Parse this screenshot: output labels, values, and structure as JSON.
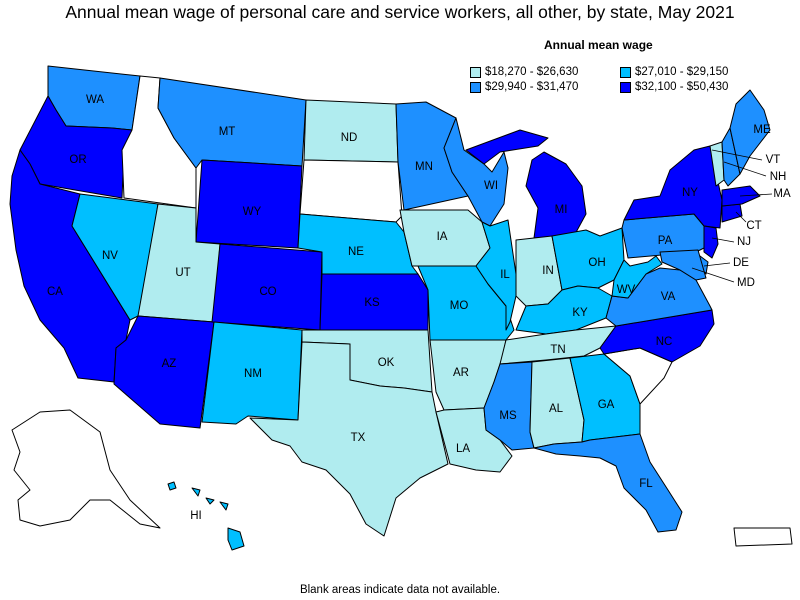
{
  "title": "Annual mean wage of personal care and service workers, all other, by state, May 2021",
  "legend": {
    "title": "Annual mean wage",
    "items": [
      {
        "label": "$18,270 - $26,630",
        "color": "#b0ecef"
      },
      {
        "label": "$27,010 - $29,150",
        "color": "#00bfff"
      },
      {
        "label": "$29,940 - $31,470",
        "color": "#1e90ff"
      },
      {
        "label": "$32,100 - $50,430",
        "color": "#0000ff"
      }
    ]
  },
  "footnote": "Blank areas indicate data not available.",
  "colors": {
    "q1": "#b0ecef",
    "q2": "#00bfff",
    "q3": "#1e90ff",
    "q4": "#0000ff",
    "na": "#ffffff"
  },
  "states": [
    {
      "abbr": "WA",
      "label": "WA",
      "class": "q3"
    },
    {
      "abbr": "OR",
      "label": "OR",
      "class": "q4"
    },
    {
      "abbr": "CA",
      "label": "CA",
      "class": "q4"
    },
    {
      "abbr": "ID",
      "label": "",
      "class": "na"
    },
    {
      "abbr": "NV",
      "label": "NV",
      "class": "q2"
    },
    {
      "abbr": "MT",
      "label": "MT",
      "class": "q3"
    },
    {
      "abbr": "WY",
      "label": "WY",
      "class": "q4"
    },
    {
      "abbr": "UT",
      "label": "UT",
      "class": "q1"
    },
    {
      "abbr": "AZ",
      "label": "AZ",
      "class": "q4"
    },
    {
      "abbr": "CO",
      "label": "CO",
      "class": "q4"
    },
    {
      "abbr": "NM",
      "label": "NM",
      "class": "q2"
    },
    {
      "abbr": "ND",
      "label": "ND",
      "class": "q1"
    },
    {
      "abbr": "SD",
      "label": "",
      "class": "na"
    },
    {
      "abbr": "NE",
      "label": "NE",
      "class": "q2"
    },
    {
      "abbr": "KS",
      "label": "KS",
      "class": "q4"
    },
    {
      "abbr": "OK",
      "label": "OK",
      "class": "q1"
    },
    {
      "abbr": "TX",
      "label": "TX",
      "class": "q1"
    },
    {
      "abbr": "MN",
      "label": "MN",
      "class": "q3"
    },
    {
      "abbr": "IA",
      "label": "IA",
      "class": "q1"
    },
    {
      "abbr": "MO",
      "label": "MO",
      "class": "q2"
    },
    {
      "abbr": "AR",
      "label": "AR",
      "class": "q1"
    },
    {
      "abbr": "LA",
      "label": "LA",
      "class": "q1"
    },
    {
      "abbr": "WI",
      "label": "WI",
      "class": "q3"
    },
    {
      "abbr": "IL",
      "label": "IL",
      "class": "q2"
    },
    {
      "abbr": "MI",
      "label": "MI",
      "class": "q4"
    },
    {
      "abbr": "IN",
      "label": "IN",
      "class": "q1"
    },
    {
      "abbr": "OH",
      "label": "OH",
      "class": "q2"
    },
    {
      "abbr": "KY",
      "label": "KY",
      "class": "q2"
    },
    {
      "abbr": "TN",
      "label": "TN",
      "class": "q1"
    },
    {
      "abbr": "MS",
      "label": "MS",
      "class": "q3"
    },
    {
      "abbr": "AL",
      "label": "AL",
      "class": "q1"
    },
    {
      "abbr": "GA",
      "label": "GA",
      "class": "q2"
    },
    {
      "abbr": "FL",
      "label": "FL",
      "class": "q3"
    },
    {
      "abbr": "SC",
      "label": "",
      "class": "na"
    },
    {
      "abbr": "NC",
      "label": "NC",
      "class": "q4"
    },
    {
      "abbr": "VA",
      "label": "VA",
      "class": "q3"
    },
    {
      "abbr": "WV",
      "label": "WV",
      "class": "q2"
    },
    {
      "abbr": "PA",
      "label": "PA",
      "class": "q3"
    },
    {
      "abbr": "NY",
      "label": "NY",
      "class": "q4"
    },
    {
      "abbr": "NJ",
      "label": "NJ",
      "class": "q4"
    },
    {
      "abbr": "DE",
      "label": "DE",
      "class": "q3"
    },
    {
      "abbr": "MD",
      "label": "MD",
      "class": "q3"
    },
    {
      "abbr": "CT",
      "label": "CT",
      "class": "q4"
    },
    {
      "abbr": "MA",
      "label": "MA",
      "class": "q4"
    },
    {
      "abbr": "VT",
      "label": "VT",
      "class": "q1"
    },
    {
      "abbr": "NH",
      "label": "NH",
      "class": "q3"
    },
    {
      "abbr": "ME",
      "label": "ME",
      "class": "q3"
    },
    {
      "abbr": "AK",
      "label": "",
      "class": "na"
    },
    {
      "abbr": "HI",
      "label": "HI",
      "class": "q2"
    },
    {
      "abbr": "PR",
      "label": "",
      "class": "na"
    }
  ]
}
